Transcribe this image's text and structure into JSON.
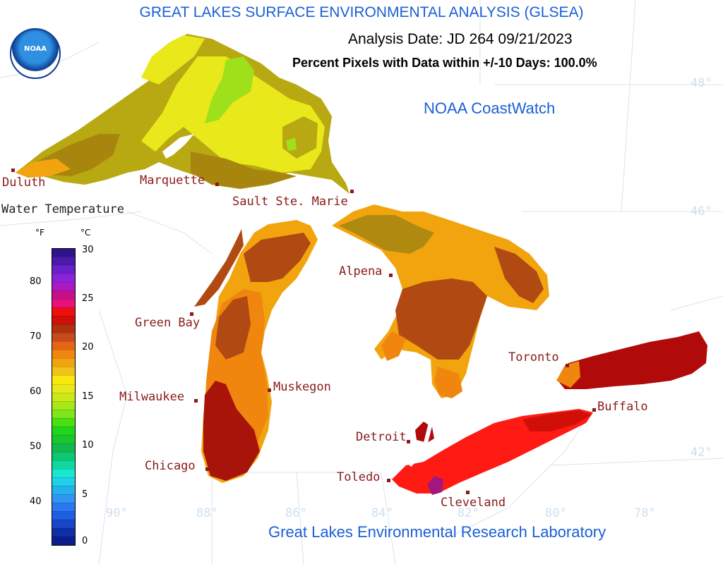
{
  "header": {
    "title": "GREAT LAKES SURFACE ENVIRONMENTAL ANALYSIS (GLSEA)",
    "analysis_date": "Analysis Date:  JD 264 09/21/2023",
    "percent_pixels": "Percent Pixels with Data within +/-10 Days: 100.0%",
    "coastwatch": "NOAA CoastWatch",
    "footer": "Great Lakes Environmental Research Laboratory",
    "logo_text": "NOAA"
  },
  "legend": {
    "title": "Water Temperature",
    "unit_f": "°F",
    "unit_c": "°C",
    "ticks_f": [
      "80",
      "70",
      "60",
      "50",
      "40"
    ],
    "ticks_c": [
      "30",
      "25",
      "20",
      "15",
      "10",
      "5",
      "0"
    ],
    "colors": [
      "#0b1e8c",
      "#1030a8",
      "#1846c4",
      "#1f5ee0",
      "#2a78f0",
      "#2f96f2",
      "#22b3ee",
      "#1fd0e8",
      "#19e8d0",
      "#10d8a0",
      "#0ec870",
      "#12b84c",
      "#16c82c",
      "#20d61c",
      "#48e010",
      "#7ee61a",
      "#a8e814",
      "#cce81a",
      "#e8e81a",
      "#f8e810",
      "#f2c21a",
      "#f2a40e",
      "#f0860e",
      "#e66418",
      "#c84a18",
      "#b03010",
      "#d01008",
      "#ee1010",
      "#e8107a",
      "#c4108a",
      "#a81ac8",
      "#8a24d8",
      "#6a20c8",
      "#4a1aaa",
      "#2e1488"
    ]
  },
  "cities": [
    "Duluth",
    "Marquette",
    "Sault Ste. Marie",
    "Green Bay",
    "Alpena",
    "Milwaukee",
    "Muskegon",
    "Chicago",
    "Toronto",
    "Buffalo",
    "Detroit",
    "Toledo",
    "Cleveland"
  ],
  "lat_labels": [
    "48°",
    "46°",
    "42°"
  ],
  "lon_labels": [
    "90°",
    "88°",
    "86°",
    "84°",
    "82°",
    "80°",
    "78°"
  ],
  "lake_colors": {
    "superior_main": "#e8e81a",
    "superior_mid": "#b8a812",
    "superior_dark": "#a8860e",
    "superior_green": "#9ee01a",
    "superior_orange": "#f2a40e",
    "michigan_orange": "#f0860e",
    "michigan_red": "#e0620e",
    "michigan_dark": "#a8140a",
    "huron_orange": "#f2a40e",
    "huron_brown": "#b04a12",
    "huron_olive": "#b08a10",
    "erie_red": "#ff1a14",
    "erie_dark": "#d01008",
    "erie_purple": "#a01880",
    "ontario_dark": "#b00a0a",
    "ontario_orange": "#f0860e"
  }
}
